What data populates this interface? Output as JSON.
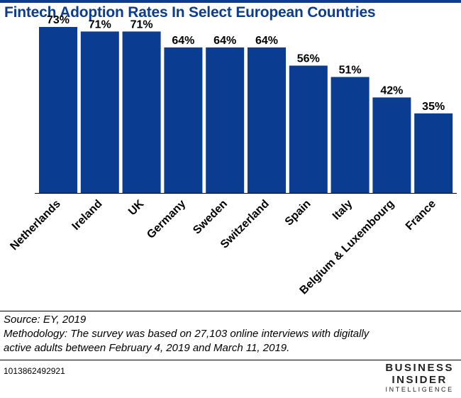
{
  "title": "Fintech Adoption Rates In Select European Countries",
  "chart_data": {
    "type": "bar",
    "title": "Fintech Adoption Rates In Select European Countries",
    "categories": [
      "Netherlands",
      "Ireland",
      "UK",
      "Germany",
      "Sweden",
      "Switzerland",
      "Spain",
      "Italy",
      "Belgium & Luxembourg",
      "France"
    ],
    "values": [
      73,
      71,
      71,
      64,
      64,
      64,
      56,
      51,
      42,
      35
    ],
    "value_labels": [
      "73%",
      "71%",
      "71%",
      "64%",
      "64%",
      "64%",
      "56%",
      "51%",
      "42%",
      "35%"
    ],
    "ylim": [
      0,
      73
    ],
    "grid": false,
    "bar_color": "#0a3d91"
  },
  "footnotes": {
    "source": "Source: EY, 2019",
    "methodology_line1": "Methodology: The survey was based on 27,103 online interviews with digitally",
    "methodology_line2": "active adults between February 4, 2019 and March 11, 2019."
  },
  "chart_id": "1013862492921",
  "logo": {
    "line1": "BUSINESS",
    "line2": "INSIDER",
    "line3": "INTELLIGENCE"
  },
  "colors": {
    "brand": "#0a3d91",
    "text": "#000000"
  }
}
